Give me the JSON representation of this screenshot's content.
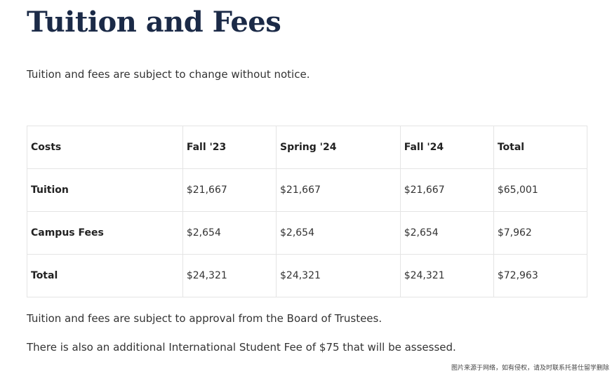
{
  "header": {
    "title": "Tuition and Fees",
    "intro": "Tuition and fees are subject to change without notice."
  },
  "table": {
    "columns": [
      "Costs",
      "Fall '23",
      "Spring '24",
      "Fall '24",
      "Total"
    ],
    "rows": [
      [
        "Tuition",
        "$21,667",
        "$21,667",
        "$21,667",
        "$65,001"
      ],
      [
        "Campus Fees",
        "$2,654",
        "$2,654",
        "$2,654",
        "$7,962"
      ],
      [
        "Total",
        "$24,321",
        "$24,321",
        "$24,321",
        "$72,963"
      ]
    ]
  },
  "footer": {
    "approval": "Tuition and fees are subject to approval from the Board of Trustees.",
    "intl": "There is also an additional International Student Fee of $75 that will be assessed.",
    "watermark": "图片来源于网络，如有侵权，请及时联系托普仕留学删除"
  }
}
